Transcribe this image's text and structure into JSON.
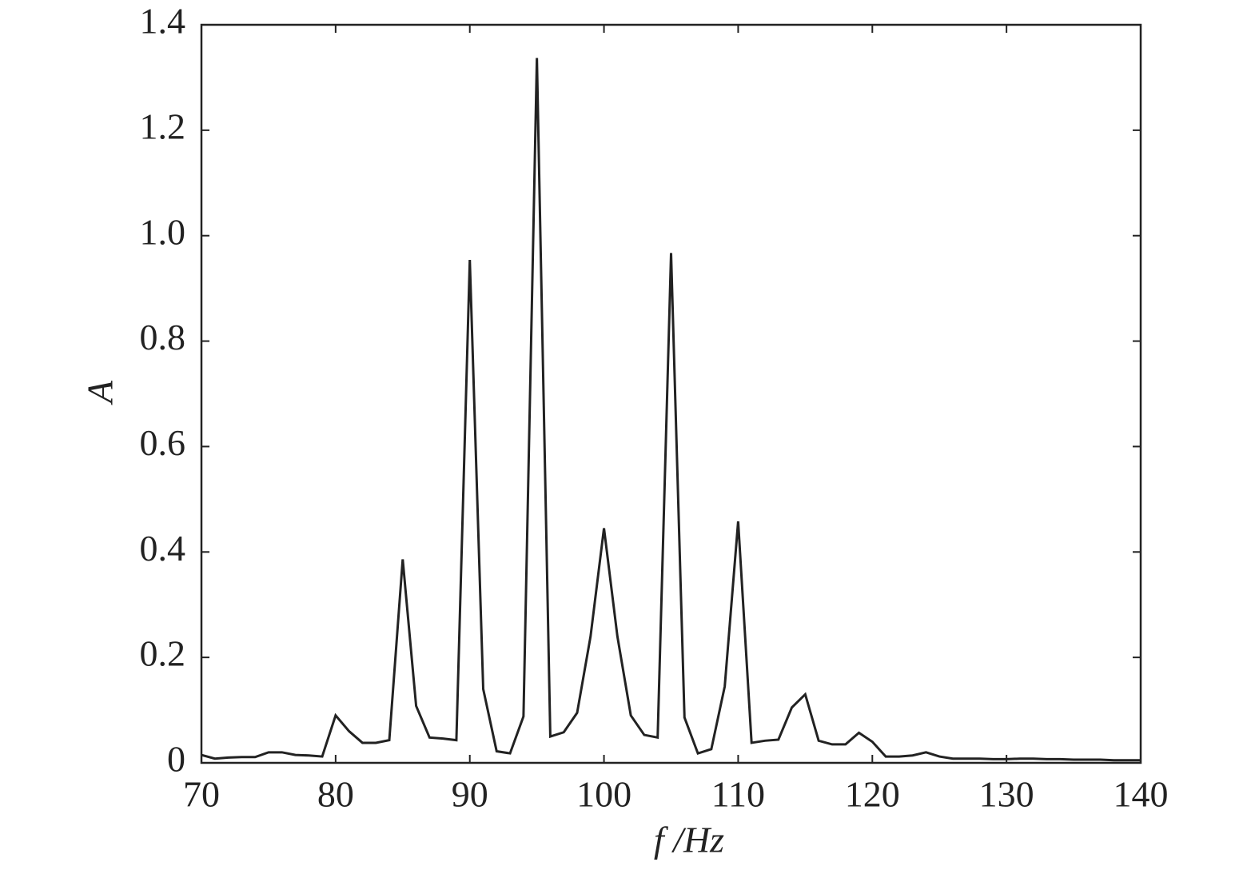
{
  "chart_data": {
    "type": "line",
    "xlabel": "f /Hz",
    "ylabel": "A",
    "x": [
      70,
      71,
      72,
      73,
      74,
      75,
      76,
      77,
      78,
      79,
      80,
      81,
      82,
      83,
      84,
      85,
      86,
      87,
      88,
      89,
      90,
      91,
      92,
      93,
      94,
      95,
      96,
      97,
      98,
      99,
      100,
      101,
      102,
      103,
      104,
      105,
      106,
      107,
      108,
      109,
      110,
      111,
      112,
      113,
      114,
      115,
      116,
      117,
      118,
      119,
      120,
      121,
      122,
      123,
      124,
      125,
      126,
      127,
      128,
      129,
      130,
      131,
      132,
      133,
      134,
      135,
      136,
      137,
      138,
      139,
      140
    ],
    "series": [
      {
        "color": "#222222",
        "values": [
          0.015,
          0.008,
          0.01,
          0.011,
          0.011,
          0.02,
          0.02,
          0.015,
          0.014,
          0.012,
          0.09,
          0.06,
          0.038,
          0.038,
          0.043,
          0.386,
          0.108,
          0.048,
          0.046,
          0.043,
          0.954,
          0.14,
          0.022,
          0.018,
          0.088,
          1.337,
          0.05,
          0.058,
          0.095,
          0.24,
          0.445,
          0.24,
          0.09,
          0.053,
          0.048,
          0.967,
          0.086,
          0.018,
          0.026,
          0.145,
          0.458,
          0.038,
          0.042,
          0.044,
          0.105,
          0.13,
          0.042,
          0.035,
          0.035,
          0.057,
          0.04,
          0.012,
          0.012,
          0.014,
          0.02,
          0.012,
          0.008,
          0.008,
          0.008,
          0.007,
          0.007,
          0.008,
          0.008,
          0.007,
          0.007,
          0.006,
          0.006,
          0.006,
          0.005,
          0.005,
          0.005
        ]
      }
    ],
    "xlim": [
      70,
      140
    ],
    "xticks": [
      70,
      80,
      90,
      100,
      110,
      120,
      130,
      140
    ],
    "ylim": [
      0,
      1.4
    ],
    "yticks": [
      0,
      0.2,
      0.4,
      0.6,
      0.8,
      {
        "value": 1,
        "label": "1.0"
      },
      1.2,
      1.4
    ],
    "grid": false
  }
}
